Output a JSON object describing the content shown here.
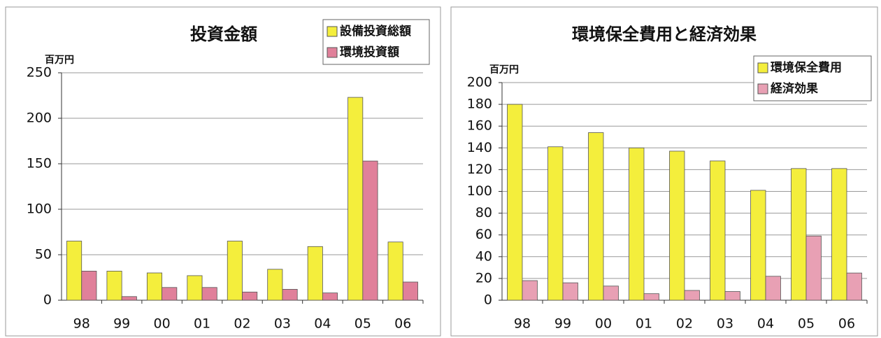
{
  "chart_data": [
    {
      "type": "bar",
      "title": "投資金額",
      "y_label": "百万円",
      "categories": [
        "98",
        "99",
        "00",
        "01",
        "02",
        "03",
        "04",
        "05",
        "06"
      ],
      "series": [
        {
          "name": "設備投資総額",
          "color": "#f4ee3c",
          "values": [
            65,
            32,
            30,
            27,
            65,
            34,
            59,
            223,
            64
          ]
        },
        {
          "name": "環境投資額",
          "color": "#e0809a",
          "values": [
            32,
            4,
            14,
            14,
            9,
            12,
            8,
            153,
            20
          ]
        }
      ],
      "ylim": [
        0,
        250
      ],
      "yticks": [
        0,
        50,
        100,
        150,
        200,
        250
      ],
      "grid": true,
      "legend": "upper right"
    },
    {
      "type": "bar",
      "title": "環境保全費用と経済効果",
      "y_label": "百万円",
      "categories": [
        "98",
        "99",
        "00",
        "01",
        "02",
        "03",
        "04",
        "05",
        "06"
      ],
      "series": [
        {
          "name": "環境保全費用",
          "color": "#f4ee3c",
          "values": [
            180,
            141,
            154,
            140,
            137,
            128,
            101,
            121,
            121
          ]
        },
        {
          "name": "経済効果",
          "color": "#e8a0b4",
          "values": [
            18,
            16,
            13,
            6,
            9,
            8,
            22,
            59,
            25
          ]
        }
      ],
      "ylim": [
        0,
        200
      ],
      "yticks": [
        0,
        20,
        40,
        60,
        80,
        100,
        120,
        140,
        160,
        180,
        200
      ],
      "grid": true,
      "legend": "upper right"
    }
  ]
}
